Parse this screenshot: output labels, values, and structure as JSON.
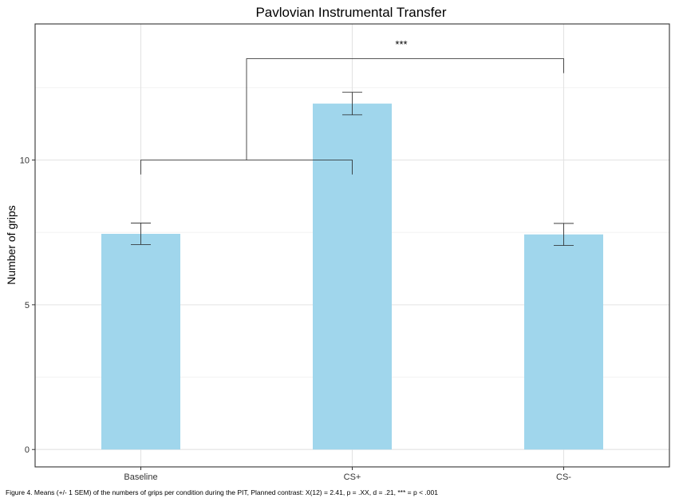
{
  "chart_data": {
    "type": "bar",
    "title": "Pavlovian Instrumental Transfer",
    "xlabel": "",
    "ylabel": "Number of grips",
    "categories": [
      "Baseline",
      "CS+",
      "CS-"
    ],
    "values": [
      7.45,
      11.95,
      7.43
    ],
    "errors": [
      0.37,
      0.39,
      0.38
    ],
    "ylim": [
      -0.6,
      14.7
    ],
    "yticks": [
      0,
      5,
      10
    ],
    "ytick_labels": [
      "0",
      "5",
      "10"
    ],
    "grid": true,
    "bar_color": "#a0d6ec",
    "annotations": [
      {
        "text": "***",
        "comparison": "Baseline & CS+ vs CS-"
      }
    ],
    "brackets": {
      "inner": {
        "from": "Baseline",
        "to": "CS+",
        "y": 10.0,
        "drop_left": 9.5,
        "drop_right": 9.5
      },
      "outer": {
        "from_mid_of": [
          "Baseline",
          "CS+"
        ],
        "to": "CS-",
        "y": 13.5,
        "drop_right": 13.0
      }
    }
  },
  "caption": "Figure 4. Means (+/- 1 SEM) of the numbers of grips per condition during the PIT, Planned contrast: X(12) = 2.41, p = .XX, d = .21, *** = p < .001"
}
